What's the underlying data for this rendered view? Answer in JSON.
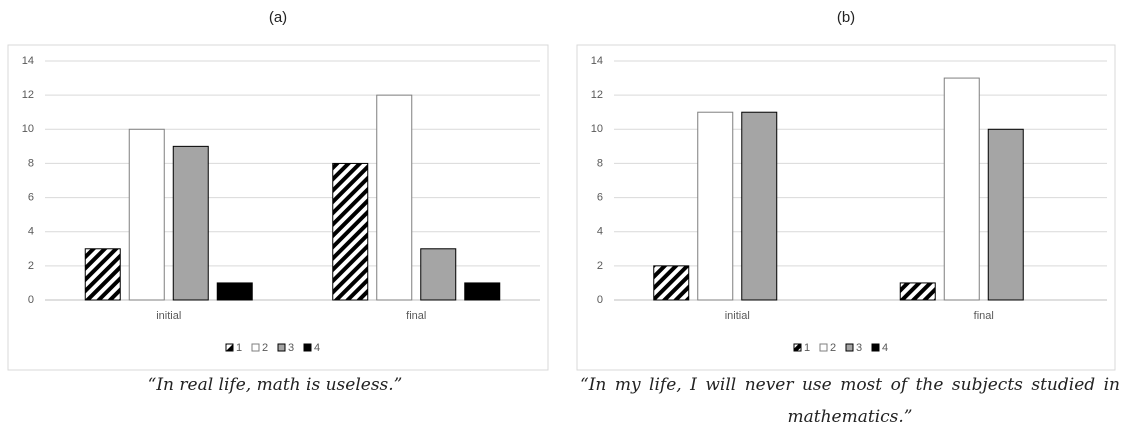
{
  "chart_data": [
    {
      "type": "bar",
      "title": "(a)",
      "caption": "“In real life, math is useless.”",
      "categories": [
        "initial",
        "final"
      ],
      "series": [
        {
          "name": "1",
          "color": "#000000",
          "hatch": true,
          "values": [
            3,
            8
          ]
        },
        {
          "name": "2",
          "color": "#ffffff",
          "values": [
            10,
            12
          ]
        },
        {
          "name": "3",
          "color": "#a5a5a5",
          "values": [
            9,
            3
          ]
        },
        {
          "name": "4",
          "color": "#000000",
          "values": [
            1,
            1
          ]
        }
      ],
      "ylim": [
        0,
        14
      ],
      "yticks": [
        0,
        2,
        4,
        6,
        8,
        10,
        12,
        14
      ],
      "grid": true,
      "legend": "bottom"
    },
    {
      "type": "bar",
      "title": "(b)",
      "caption": "“In my life, I will never use most of the subjects studied in mathematics.”",
      "categories": [
        "initial",
        "final"
      ],
      "series": [
        {
          "name": "1",
          "color": "#000000",
          "hatch": true,
          "values": [
            2,
            1
          ]
        },
        {
          "name": "2",
          "color": "#ffffff",
          "values": [
            11,
            13
          ]
        },
        {
          "name": "3",
          "color": "#a5a5a5",
          "values": [
            11,
            10
          ]
        },
        {
          "name": "4",
          "color": "#000000",
          "values": [
            0,
            0
          ]
        }
      ],
      "ylim": [
        0,
        14
      ],
      "yticks": [
        0,
        2,
        4,
        6,
        8,
        10,
        12,
        14
      ],
      "grid": true,
      "legend": "bottom"
    }
  ]
}
